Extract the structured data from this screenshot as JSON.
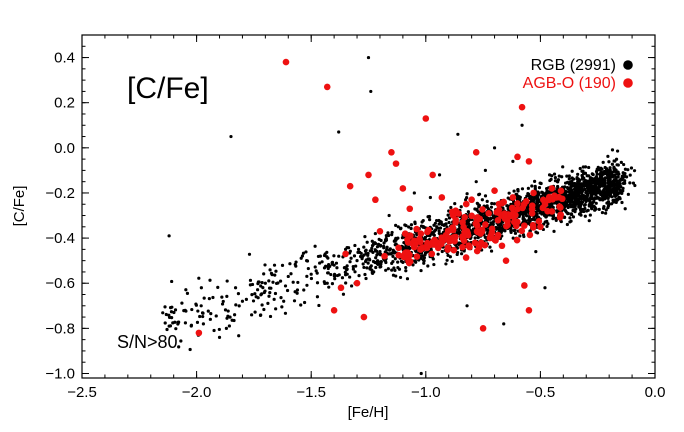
{
  "chart_data": {
    "type": "scatter",
    "title": "[C/Fe]",
    "xlabel": "[Fe/H]",
    "ylabel": "[C/Fe]",
    "xlim": [
      -2.5,
      0.0
    ],
    "ylim": [
      -1.02,
      0.5
    ],
    "xticks": [
      -2.5,
      -2.0,
      -1.5,
      -1.0,
      -0.5,
      0.0
    ],
    "xtick_labels": [
      "−2.5",
      "−2.0",
      "−1.5",
      "−1.0",
      "−0.5",
      "0.0"
    ],
    "yticks": [
      -1.0,
      -0.8,
      -0.6,
      -0.4,
      -0.2,
      0.0,
      0.2,
      0.4
    ],
    "ytick_labels": [
      "−1.0",
      "−0.8",
      "−0.6",
      "−0.4",
      "−0.2",
      "0.0",
      "0.2",
      "0.4"
    ],
    "legend_position": "top-right",
    "annotation": "S/N>80",
    "series": [
      {
        "name": "RGB (2991)",
        "color": "#000000",
        "marker": "small-dot",
        "trend": {
          "slope": 0.31,
          "intercept": -0.1,
          "scatter": 0.07
        },
        "points": [
          [
            -2.12,
            -0.39
          ],
          [
            -2.05,
            -0.72
          ],
          [
            -1.98,
            -0.7
          ],
          [
            -1.94,
            -0.76
          ],
          [
            -1.9,
            -0.84
          ],
          [
            -1.87,
            -0.8
          ],
          [
            -1.85,
            0.05
          ],
          [
            -1.83,
            -0.62
          ],
          [
            -1.8,
            -0.68
          ],
          [
            -1.76,
            -0.74
          ],
          [
            -1.74,
            -0.66
          ],
          [
            -1.7,
            -0.6
          ],
          [
            -1.66,
            -0.52
          ],
          [
            -1.62,
            -0.68
          ],
          [
            -1.6,
            -0.57
          ],
          [
            -1.56,
            -0.63
          ],
          [
            -1.52,
            -0.5
          ],
          [
            -1.5,
            -0.56
          ],
          [
            -1.46,
            -0.48
          ],
          [
            -1.43,
            -0.6
          ],
          [
            -1.4,
            -0.52
          ],
          [
            -1.38,
            0.07
          ],
          [
            -1.35,
            -0.45
          ],
          [
            -1.3,
            -0.5
          ],
          [
            -1.27,
            -0.53
          ],
          [
            -1.25,
            0.4
          ],
          [
            -1.24,
            0.25
          ],
          [
            -1.22,
            -0.38
          ],
          [
            -1.2,
            -0.46
          ],
          [
            -1.16,
            -0.3
          ],
          [
            -1.12,
            -0.35
          ],
          [
            -1.08,
            -0.58
          ],
          [
            -1.05,
            -0.2
          ],
          [
            -1.02,
            -1.0
          ],
          [
            -0.98,
            -0.22
          ],
          [
            -0.94,
            -0.12
          ],
          [
            -0.9,
            -0.28
          ],
          [
            -0.86,
            0.06
          ],
          [
            -0.82,
            -0.7
          ],
          [
            -0.78,
            -0.15
          ],
          [
            -0.74,
            -0.1
          ],
          [
            -0.7,
            0.0
          ],
          [
            -0.66,
            -0.78
          ],
          [
            -0.62,
            -0.06
          ],
          [
            -0.58,
            0.1
          ],
          [
            -0.52,
            -0.46
          ],
          [
            -0.48,
            -0.62
          ],
          [
            -0.46,
            -0.12
          ],
          [
            -0.4,
            -0.26
          ],
          [
            -0.36,
            -0.22
          ],
          [
            -0.32,
            -0.18
          ],
          [
            -0.28,
            -0.2
          ],
          [
            -0.24,
            -0.23
          ],
          [
            -0.2,
            -0.25
          ],
          [
            -0.18,
            -0.24
          ],
          [
            -0.13,
            -0.27
          ],
          [
            -0.72,
            -0.44
          ],
          [
            -0.68,
            -0.36
          ],
          [
            -0.64,
            -0.32
          ],
          [
            -0.6,
            -0.3
          ],
          [
            -0.56,
            -0.28
          ],
          [
            -0.5,
            -0.27
          ],
          [
            -0.44,
            -0.24
          ],
          [
            -0.88,
            -0.4
          ],
          [
            -0.84,
            -0.42
          ]
        ]
      },
      {
        "name": "AGB-O (190)",
        "color": "#ee1111",
        "marker": "large-dot",
        "trend": {
          "slope": 0.3,
          "intercept": -0.13,
          "scatter": 0.06
        },
        "points": [
          [
            -1.99,
            -0.82
          ],
          [
            -1.61,
            0.38
          ],
          [
            -1.43,
            0.27
          ],
          [
            -1.4,
            -0.72
          ],
          [
            -1.37,
            -0.62
          ],
          [
            -1.35,
            -0.47
          ],
          [
            -1.33,
            -0.17
          ],
          [
            -1.3,
            -0.6
          ],
          [
            -1.27,
            -0.75
          ],
          [
            -1.25,
            -0.12
          ],
          [
            -1.22,
            -0.23
          ],
          [
            -1.2,
            -0.37
          ],
          [
            -1.18,
            -0.48
          ],
          [
            -1.15,
            -0.02
          ],
          [
            -1.13,
            -0.07
          ],
          [
            -1.1,
            -0.18
          ],
          [
            -1.07,
            -0.27
          ],
          [
            -1.04,
            -0.36
          ],
          [
            -1.0,
            0.13
          ],
          [
            -0.97,
            -0.12
          ],
          [
            -0.93,
            -0.22
          ],
          [
            -0.9,
            -0.4
          ],
          [
            -0.87,
            -0.33
          ],
          [
            -0.84,
            -0.44
          ],
          [
            -0.8,
            -0.23
          ],
          [
            -0.78,
            -0.02
          ],
          [
            -0.75,
            -0.8
          ],
          [
            -0.72,
            -0.4
          ],
          [
            -0.7,
            -0.19
          ],
          [
            -0.67,
            -0.3
          ],
          [
            -0.65,
            -0.5
          ],
          [
            -0.62,
            -0.22
          ],
          [
            -0.6,
            -0.04
          ],
          [
            -0.58,
            0.18
          ],
          [
            -0.57,
            -0.61
          ],
          [
            -0.55,
            -0.72
          ],
          [
            -0.53,
            -0.2
          ],
          [
            -0.5,
            -0.35
          ],
          [
            -0.48,
            -0.25
          ],
          [
            -0.45,
            -0.18
          ],
          [
            -0.43,
            -0.22
          ],
          [
            -0.55,
            -0.06
          ],
          [
            -0.66,
            -0.24
          ],
          [
            -0.74,
            -0.34
          ],
          [
            -0.82,
            -0.37
          ],
          [
            -0.88,
            -0.3
          ],
          [
            -0.95,
            -0.42
          ],
          [
            -1.05,
            -0.44
          ]
        ]
      }
    ]
  }
}
